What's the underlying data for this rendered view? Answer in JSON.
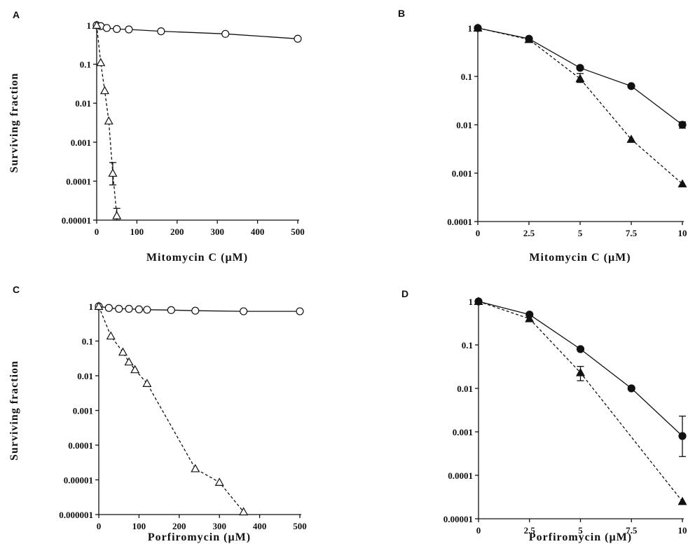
{
  "chart_data": [
    {
      "panel_label": "A",
      "type": "scatter",
      "ylabel": "Surviving fraction",
      "xlabel": "Mitomycin C (µM)",
      "x_scale": "linear",
      "y_scale": "log",
      "xlim": [
        0,
        500
      ],
      "ylim": [
        1e-05,
        1
      ],
      "x_ticks": [
        "0",
        "100",
        "200",
        "300",
        "400",
        "500"
      ],
      "y_ticks": [
        "1",
        "0.1",
        "0.01",
        "0.001",
        "0.0001",
        "0.00001"
      ],
      "series": [
        {
          "marker": "open-circle",
          "line": "solid",
          "x": [
            0,
            10,
            25,
            50,
            80,
            160,
            320,
            500
          ],
          "y": [
            1,
            0.95,
            0.85,
            0.8,
            0.78,
            0.7,
            0.6,
            0.45
          ]
        },
        {
          "marker": "open-triangle",
          "line": "dashed",
          "x": [
            0,
            10,
            20,
            30,
            40,
            50
          ],
          "y": [
            1,
            0.11,
            0.021,
            0.0035,
            0.00016,
            1.3e-05
          ],
          "error_x": [
            40,
            50
          ],
          "error_lo": [
            8e-05,
            1e-05
          ],
          "error_hi": [
            0.0003,
            2e-05
          ]
        }
      ]
    },
    {
      "panel_label": "B",
      "type": "scatter",
      "ylabel": "",
      "xlabel": "Mitomycin C (µM)",
      "x_scale": "linear",
      "y_scale": "log",
      "xlim": [
        0,
        10
      ],
      "ylim": [
        0.0001,
        1
      ],
      "x_ticks": [
        "0",
        "2.5",
        "5",
        "7.5",
        "10"
      ],
      "y_ticks": [
        "1",
        "0.1",
        "0.01",
        "0.001",
        "0.0001"
      ],
      "series": [
        {
          "marker": "filled-circle",
          "line": "solid",
          "x": [
            0,
            2.5,
            5,
            7.5,
            10
          ],
          "y": [
            1,
            0.6,
            0.15,
            0.063,
            0.01
          ],
          "error_x": [
            10
          ],
          "error_lo": [
            0.0085
          ],
          "error_hi": [
            0.0115
          ]
        },
        {
          "marker": "filled-triangle",
          "line": "dashed",
          "x": [
            0,
            2.5,
            5,
            7.5,
            10
          ],
          "y": [
            1,
            0.58,
            0.09,
            0.005,
            0.0006
          ],
          "error_x": [
            5
          ],
          "error_lo": [
            0.075
          ],
          "error_hi": [
            0.115
          ]
        }
      ]
    },
    {
      "panel_label": "C",
      "type": "scatter",
      "ylabel": "Surviving fraction",
      "xlabel": "Porfiromycin (µM)",
      "x_scale": "linear",
      "y_scale": "log",
      "xlim": [
        0,
        500
      ],
      "ylim": [
        1e-06,
        1
      ],
      "x_ticks": [
        "0",
        "100",
        "200",
        "300",
        "400",
        "500"
      ],
      "y_ticks": [
        "1",
        "0.1",
        "0.01",
        "0.001",
        "0.0001",
        "0.00001",
        "0.000001"
      ],
      "series": [
        {
          "marker": "open-circle",
          "line": "solid",
          "x": [
            0,
            25,
            50,
            75,
            100,
            120,
            180,
            240,
            360,
            500
          ],
          "y": [
            1,
            0.9,
            0.85,
            0.85,
            0.82,
            0.8,
            0.78,
            0.75,
            0.72,
            0.72
          ]
        },
        {
          "marker": "open-triangle",
          "line": "dashed",
          "x": [
            0,
            30,
            60,
            75,
            90,
            120,
            240,
            300,
            360
          ],
          "y": [
            1,
            0.14,
            0.048,
            0.025,
            0.015,
            0.006,
            2.1e-05,
            8.5e-06,
            1.2e-06
          ]
        }
      ]
    },
    {
      "panel_label": "D",
      "type": "scatter",
      "ylabel": "",
      "xlabel": "Porfiromycin (µM)",
      "x_scale": "linear",
      "y_scale": "log",
      "xlim": [
        0,
        10
      ],
      "ylim": [
        1e-05,
        1
      ],
      "x_ticks": [
        "0",
        "2.5",
        "5",
        "7.5",
        "10"
      ],
      "y_ticks": [
        "1",
        "0.1",
        "0.01",
        "0.001",
        "0.0001",
        "0.00001"
      ],
      "series": [
        {
          "marker": "filled-circle",
          "line": "solid",
          "x": [
            0,
            2.5,
            5,
            7.5,
            10
          ],
          "y": [
            1,
            0.5,
            0.08,
            0.01,
            0.0008
          ],
          "error_x": [
            10
          ],
          "error_lo": [
            0.00027
          ],
          "error_hi": [
            0.0023
          ]
        },
        {
          "marker": "filled-triangle",
          "line": "dashed",
          "x": [
            0,
            2.5,
            5,
            10
          ],
          "y": [
            1,
            0.4,
            0.023,
            2.5e-05
          ],
          "error_x": [
            5
          ],
          "error_lo": [
            0.015
          ],
          "error_hi": [
            0.032
          ]
        }
      ]
    }
  ]
}
